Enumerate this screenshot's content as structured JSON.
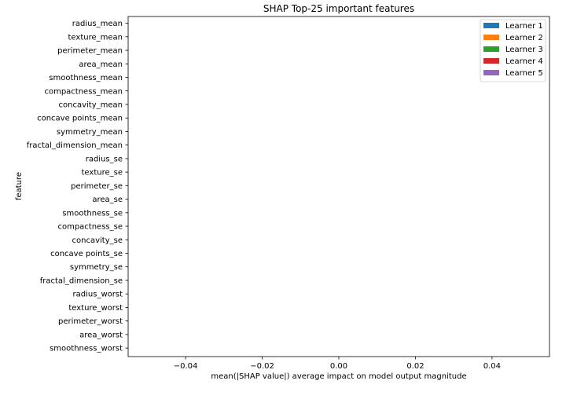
{
  "chart_data": {
    "type": "bar",
    "orientation": "horizontal",
    "title": "SHAP Top-25 important features",
    "xlabel": "mean(|SHAP value|) average impact on model output magnitude",
    "ylabel": "feature",
    "xlim": [
      -0.055,
      0.055
    ],
    "xticks": [
      -0.04,
      -0.02,
      0.0,
      0.02,
      0.04
    ],
    "xtick_labels": [
      "−0.04",
      "−0.02",
      "0.00",
      "0.02",
      "0.04"
    ],
    "grid": false,
    "legend_position": "top-right",
    "categories": [
      "radius_mean",
      "texture_mean",
      "perimeter_mean",
      "area_mean",
      "smoothness_mean",
      "compactness_mean",
      "concavity_mean",
      "concave points_mean",
      "symmetry_mean",
      "fractal_dimension_mean",
      "radius_se",
      "texture_se",
      "perimeter_se",
      "area_se",
      "smoothness_se",
      "compactness_se",
      "concavity_se",
      "concave points_se",
      "symmetry_se",
      "fractal_dimension_se",
      "radius_worst",
      "texture_worst",
      "perimeter_worst",
      "area_worst",
      "smoothness_worst"
    ],
    "series": [
      {
        "name": "Learner 1",
        "color": "#1f77b4",
        "values": [
          0,
          0,
          0,
          0,
          0,
          0,
          0,
          0,
          0,
          0,
          0,
          0,
          0,
          0,
          0,
          0,
          0,
          0,
          0,
          0,
          0,
          0,
          0,
          0,
          0
        ]
      },
      {
        "name": "Learner 2",
        "color": "#ff7f0e",
        "values": [
          0,
          0,
          0,
          0,
          0,
          0,
          0,
          0,
          0,
          0,
          0,
          0,
          0,
          0,
          0,
          0,
          0,
          0,
          0,
          0,
          0,
          0,
          0,
          0,
          0
        ]
      },
      {
        "name": "Learner 3",
        "color": "#2ca02c",
        "values": [
          0,
          0,
          0,
          0,
          0,
          0,
          0,
          0,
          0,
          0,
          0,
          0,
          0,
          0,
          0,
          0,
          0,
          0,
          0,
          0,
          0,
          0,
          0,
          0,
          0
        ]
      },
      {
        "name": "Learner 4",
        "color": "#d62728",
        "values": [
          0,
          0,
          0,
          0,
          0,
          0,
          0,
          0,
          0,
          0,
          0,
          0,
          0,
          0,
          0,
          0,
          0,
          0,
          0,
          0,
          0,
          0,
          0,
          0,
          0
        ]
      },
      {
        "name": "Learner 5",
        "color": "#9467bd",
        "values": [
          0,
          0,
          0,
          0,
          0,
          0,
          0,
          0,
          0,
          0,
          0,
          0,
          0,
          0,
          0,
          0,
          0,
          0,
          0,
          0,
          0,
          0,
          0,
          0,
          0
        ]
      }
    ]
  }
}
